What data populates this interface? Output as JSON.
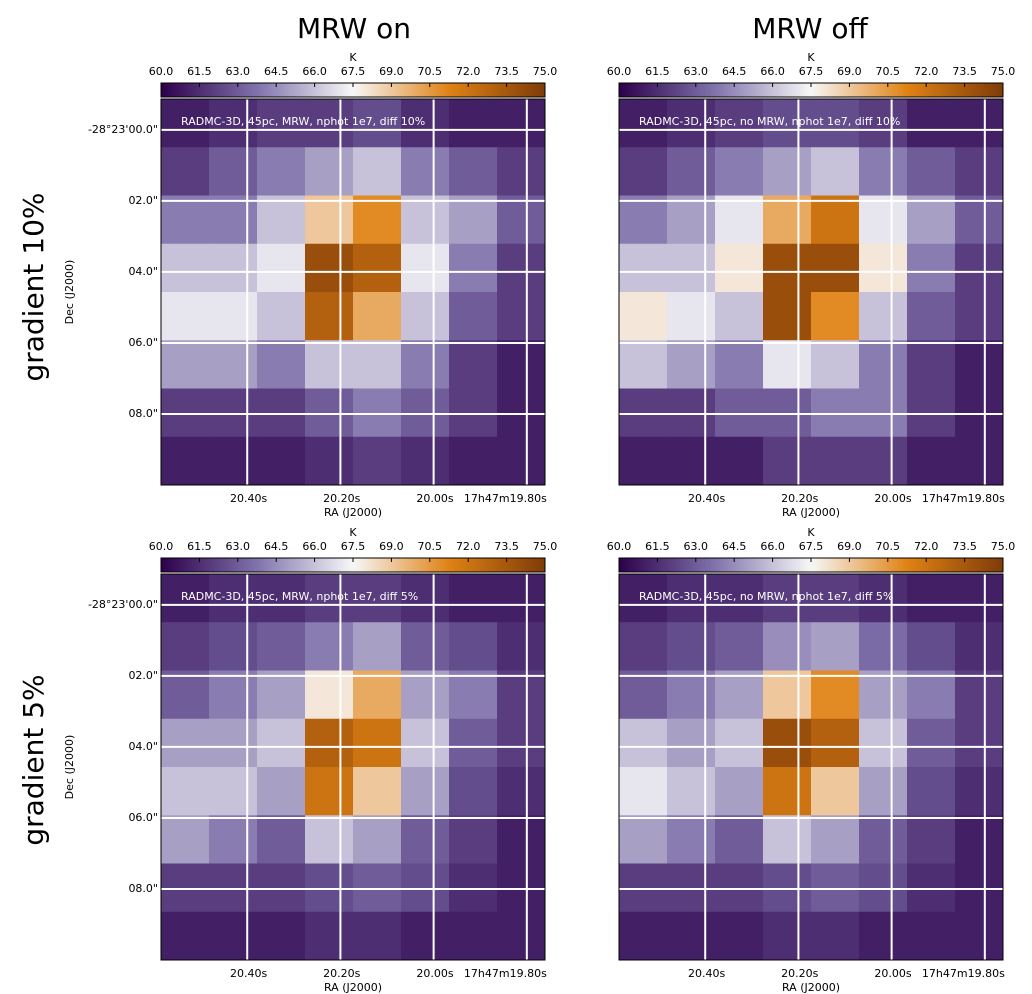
{
  "column_titles": [
    "MRW on",
    "MRW off"
  ],
  "row_titles": [
    "gradient 10%",
    "gradient 5%"
  ],
  "chart_data": [
    {
      "type": "heatmap",
      "annotation": "RADMC-3D, 45pc, MRW, nphot 1e7, diff 10%",
      "clabel": "K",
      "clim": [
        60,
        75
      ],
      "cticks": [
        {
          "value": 60,
          "label": "60.0"
        },
        {
          "value": 61.5,
          "label": "61.5"
        },
        {
          "value": 63,
          "label": "63.0"
        },
        {
          "value": 64.5,
          "label": "64.5"
        },
        {
          "value": 66,
          "label": "66.0"
        },
        {
          "value": 67.5,
          "label": "67.5"
        },
        {
          "value": 69,
          "label": "69.0"
        },
        {
          "value": 70.5,
          "label": "70.5"
        },
        {
          "value": 72,
          "label": "72.0"
        },
        {
          "value": 73.5,
          "label": "73.5"
        },
        {
          "value": 75,
          "label": "75.0"
        }
      ],
      "xlabel": "RA (J2000)",
      "ylabel": "Dec (J2000)",
      "xlim": [
        20.585,
        19.761
      ],
      "ylim": [
        10.0,
        -0.87
      ],
      "xticks": [
        {
          "value": 20.4,
          "label": "20.40s"
        },
        {
          "value": 20.2,
          "label": "20.20s"
        },
        {
          "value": 20.0,
          "label": "20.00s"
        },
        {
          "value": 19.8,
          "label": "17h47m19.80s"
        }
      ],
      "yticks": [
        {
          "value": 0,
          "label": "-28°23'00.0\""
        },
        {
          "value": 2,
          "label": "02.0\""
        },
        {
          "value": 4,
          "label": "04.0\""
        },
        {
          "value": 6,
          "label": "06.0\""
        },
        {
          "value": 8,
          "label": "08.0\""
        }
      ],
      "z": [
        [
          61,
          61.5,
          62,
          62,
          62.5,
          61.5,
          61,
          61
        ],
        [
          62,
          63,
          64,
          65,
          66,
          64,
          63,
          62
        ],
        [
          64,
          64,
          66,
          69,
          71,
          66,
          65,
          63
        ],
        [
          66,
          66,
          67,
          74,
          73,
          67,
          64,
          62
        ],
        [
          67,
          67,
          66,
          73,
          70,
          66,
          63,
          62
        ],
        [
          65,
          65,
          64,
          66,
          66,
          64,
          62,
          61
        ],
        [
          62,
          62,
          62,
          63,
          64,
          63,
          62,
          61
        ],
        [
          61,
          61,
          61,
          61.5,
          62,
          61.5,
          61,
          61
        ]
      ]
    },
    {
      "type": "heatmap",
      "annotation": "RADMC-3D, 45pc, no MRW, nphot 1e7, diff 10%",
      "clabel": "K",
      "clim": [
        60,
        75
      ],
      "cticks": [
        {
          "value": 60,
          "label": "60.0"
        },
        {
          "value": 61.5,
          "label": "61.5"
        },
        {
          "value": 63,
          "label": "63.0"
        },
        {
          "value": 64.5,
          "label": "64.5"
        },
        {
          "value": 66,
          "label": "66.0"
        },
        {
          "value": 67.5,
          "label": "67.5"
        },
        {
          "value": 69,
          "label": "69.0"
        },
        {
          "value": 70.5,
          "label": "70.5"
        },
        {
          "value": 72,
          "label": "72.0"
        },
        {
          "value": 73.5,
          "label": "73.5"
        },
        {
          "value": 75,
          "label": "75.0"
        }
      ],
      "xlabel": "RA (J2000)",
      "xlim": [
        20.585,
        19.761
      ],
      "ylim": [
        10.0,
        -0.87
      ],
      "xticks": [
        {
          "value": 20.4,
          "label": "20.40s"
        },
        {
          "value": 20.2,
          "label": "20.20s"
        },
        {
          "value": 20.0,
          "label": "20.00s"
        },
        {
          "value": 19.8,
          "label": "17h47m19.80s"
        }
      ],
      "z": [
        [
          61,
          61.5,
          62,
          62.5,
          62.5,
          62,
          61,
          61
        ],
        [
          62,
          63,
          64,
          65,
          66,
          64,
          63,
          62
        ],
        [
          64,
          65,
          67,
          70,
          72,
          67,
          65,
          63
        ],
        [
          66,
          66,
          68,
          74,
          74,
          68,
          64,
          62
        ],
        [
          68,
          67,
          66,
          74,
          71,
          66,
          63,
          62
        ],
        [
          66,
          65,
          64,
          67,
          66,
          64,
          62,
          61
        ],
        [
          62,
          62,
          63,
          63,
          64,
          64,
          62,
          61
        ],
        [
          61,
          61,
          61,
          62,
          62,
          62,
          61,
          61
        ]
      ]
    },
    {
      "type": "heatmap",
      "annotation": "RADMC-3D, 45pc, MRW, nphot 1e7, diff 5%",
      "clabel": "K",
      "clim": [
        60,
        75
      ],
      "cticks": [
        {
          "value": 60,
          "label": "60.0"
        },
        {
          "value": 61.5,
          "label": "61.5"
        },
        {
          "value": 63,
          "label": "63.0"
        },
        {
          "value": 64.5,
          "label": "64.5"
        },
        {
          "value": 66,
          "label": "66.0"
        },
        {
          "value": 67.5,
          "label": "67.5"
        },
        {
          "value": 69,
          "label": "69.0"
        },
        {
          "value": 70.5,
          "label": "70.5"
        },
        {
          "value": 72,
          "label": "72.0"
        },
        {
          "value": 73.5,
          "label": "73.5"
        },
        {
          "value": 75,
          "label": "75.0"
        }
      ],
      "xlabel": "RA (J2000)",
      "ylabel": "Dec (J2000)",
      "xlim": [
        20.585,
        19.761
      ],
      "ylim": [
        10.0,
        -0.87
      ],
      "xticks": [
        {
          "value": 20.4,
          "label": "20.40s"
        },
        {
          "value": 20.2,
          "label": "20.20s"
        },
        {
          "value": 20.0,
          "label": "20.00s"
        },
        {
          "value": 19.8,
          "label": "17h47m19.80s"
        }
      ],
      "yticks": [
        {
          "value": 0,
          "label": "-28°23'00.0\""
        },
        {
          "value": 2,
          "label": "02.0\""
        },
        {
          "value": 4,
          "label": "04.0\""
        },
        {
          "value": 6,
          "label": "06.0\""
        },
        {
          "value": 8,
          "label": "08.0\""
        }
      ],
      "z": [
        [
          61,
          61.5,
          61.5,
          62,
          62,
          61.5,
          61,
          61
        ],
        [
          62,
          62.5,
          63,
          64,
          65,
          63,
          62.5,
          61.5
        ],
        [
          63,
          64,
          65,
          68,
          70,
          65,
          64,
          62
        ],
        [
          65,
          65,
          66,
          73,
          72,
          66,
          63,
          62
        ],
        [
          66,
          66,
          65,
          72,
          69,
          65,
          62.5,
          61.5
        ],
        [
          65,
          64,
          63,
          66,
          65,
          63,
          62,
          61
        ],
        [
          62,
          62,
          62,
          62.5,
          63,
          62.5,
          61.5,
          61
        ],
        [
          61,
          61,
          61,
          61.5,
          61.5,
          61,
          61,
          61
        ]
      ]
    },
    {
      "type": "heatmap",
      "annotation": "RADMC-3D, 45pc, no MRW, nphot 1e7, diff 5%",
      "clabel": "K",
      "clim": [
        60,
        75
      ],
      "cticks": [
        {
          "value": 60,
          "label": "60.0"
        },
        {
          "value": 61.5,
          "label": "61.5"
        },
        {
          "value": 63,
          "label": "63.0"
        },
        {
          "value": 64.5,
          "label": "64.5"
        },
        {
          "value": 66,
          "label": "66.0"
        },
        {
          "value": 67.5,
          "label": "67.5"
        },
        {
          "value": 69,
          "label": "69.0"
        },
        {
          "value": 70.5,
          "label": "70.5"
        },
        {
          "value": 72,
          "label": "72.0"
        },
        {
          "value": 73.5,
          "label": "73.5"
        },
        {
          "value": 75,
          "label": "75.0"
        }
      ],
      "xlabel": "RA (J2000)",
      "xlim": [
        20.585,
        19.761
      ],
      "ylim": [
        10.0,
        -0.87
      ],
      "xticks": [
        {
          "value": 20.4,
          "label": "20.40s"
        },
        {
          "value": 20.2,
          "label": "20.20s"
        },
        {
          "value": 20.0,
          "label": "20.00s"
        },
        {
          "value": 19.8,
          "label": "17h47m19.80s"
        }
      ],
      "z": [
        [
          61,
          61.5,
          61.5,
          62,
          62,
          61.5,
          61,
          61
        ],
        [
          62,
          62.5,
          63,
          64.5,
          65,
          63.5,
          62.5,
          61.5
        ],
        [
          63,
          64,
          65,
          69,
          71,
          65,
          64,
          62
        ],
        [
          66,
          65,
          66,
          74,
          73,
          66,
          63,
          62
        ],
        [
          67,
          66,
          65,
          72,
          69,
          65,
          62.5,
          61.5
        ],
        [
          65,
          64,
          63,
          66,
          65,
          63,
          62,
          61
        ],
        [
          62,
          62,
          62,
          62.5,
          63,
          62.5,
          61.5,
          61
        ],
        [
          61,
          61,
          61,
          61.5,
          61.5,
          61,
          61,
          61
        ]
      ]
    }
  ]
}
